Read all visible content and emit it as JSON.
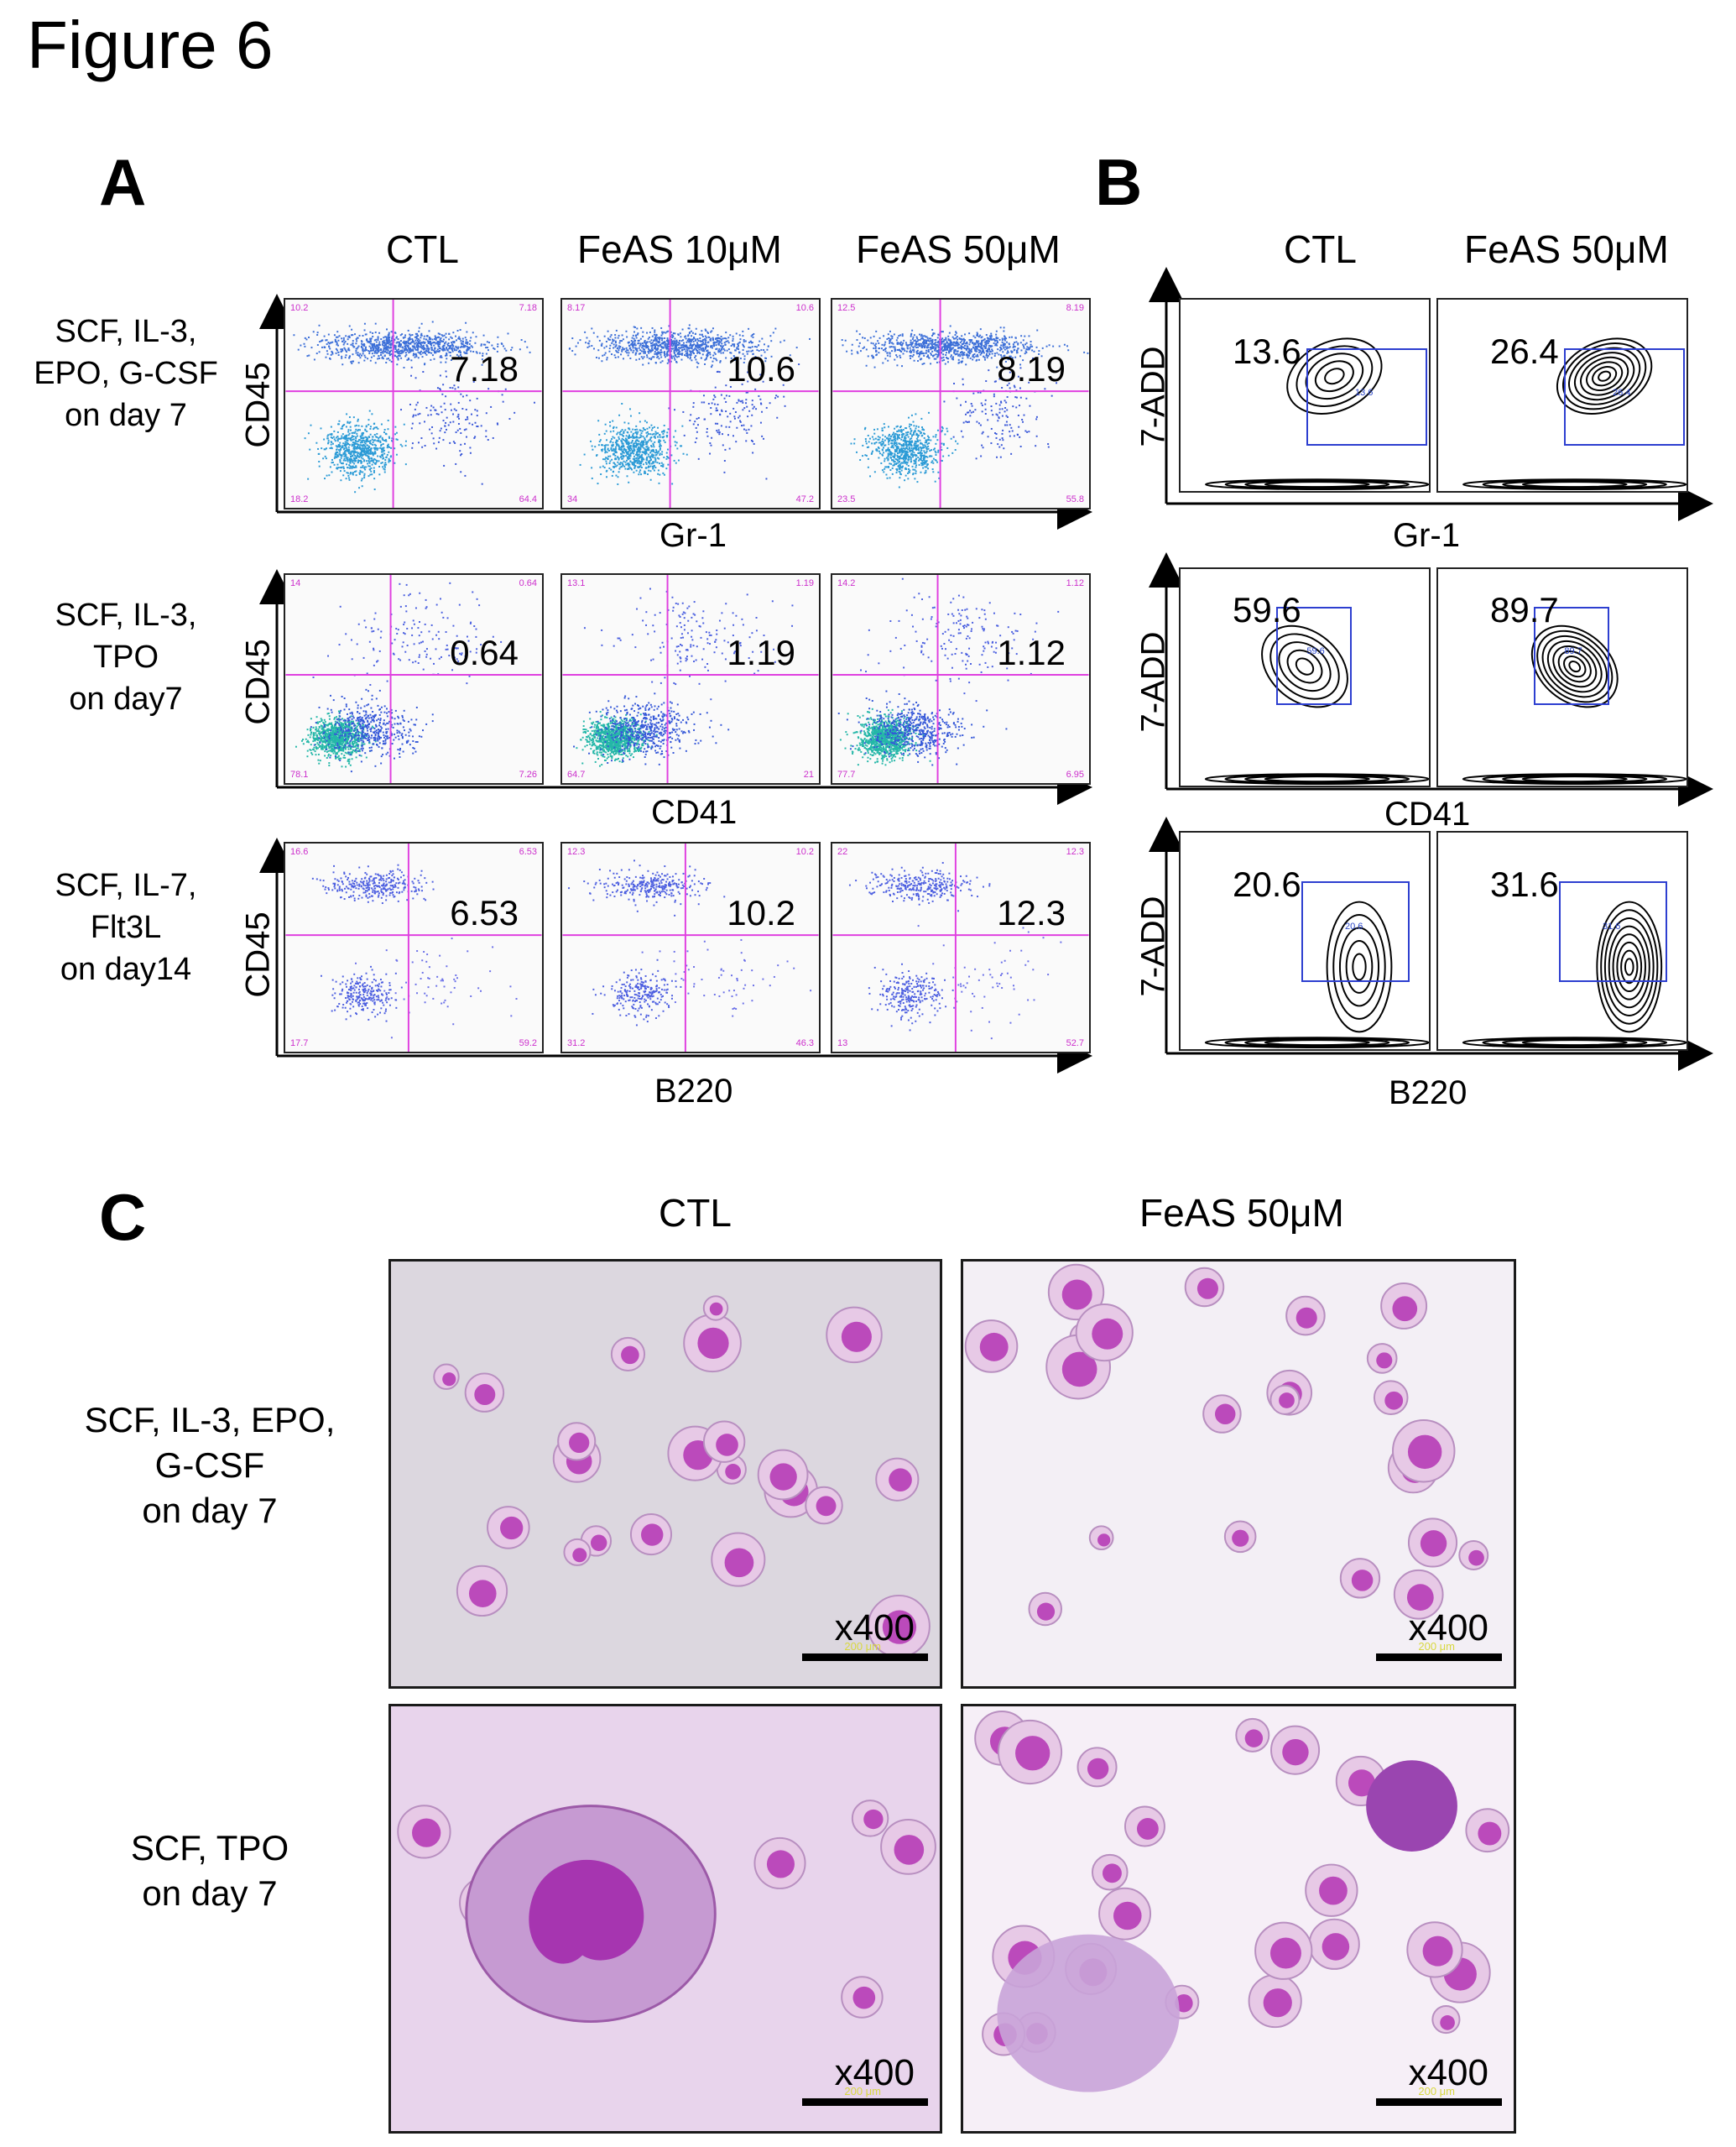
{
  "figure_title": "Figure 6",
  "panels": {
    "A": {
      "letter": "A",
      "columns": [
        "CTL",
        "FeAS 10μM",
        "FeAS 50μM"
      ],
      "y_axis_label": "CD45",
      "rows": [
        {
          "label_lines": [
            "SCF, IL-3,",
            "EPO, G-CSF",
            "on day 7"
          ],
          "x_axis_label": "Gr-1",
          "plots": [
            {
              "main": "7.18",
              "ul": "10.2",
              "ur": "7.18",
              "ll": "18.2",
              "lr": "64.4"
            },
            {
              "main": "10.6",
              "ul": "8.17",
              "ur": "10.6",
              "ll": "34",
              "lr": "47.2"
            },
            {
              "main": "8.19",
              "ul": "12.5",
              "ur": "8.19",
              "ll": "23.5",
              "lr": "55.8"
            }
          ]
        },
        {
          "label_lines": [
            "SCF, IL-3,",
            "TPO",
            "on day7"
          ],
          "x_axis_label": "CD41",
          "plots": [
            {
              "main": "0.64",
              "ul": "14",
              "ur": "0.64",
              "ll": "78.1",
              "lr": "7.26"
            },
            {
              "main": "1.19",
              "ul": "13.1",
              "ur": "1.19",
              "ll": "64.7",
              "lr": "21"
            },
            {
              "main": "1.12",
              "ul": "14.2",
              "ur": "1.12",
              "ll": "77.7",
              "lr": "6.95"
            }
          ]
        },
        {
          "label_lines": [
            "SCF, IL-7,",
            "Flt3L",
            "on day14"
          ],
          "x_axis_label": "B220",
          "plots": [
            {
              "main": "6.53",
              "ul": "16.6",
              "ur": "6.53",
              "ll": "17.7",
              "lr": "59.2"
            },
            {
              "main": "10.2",
              "ul": "12.3",
              "ur": "10.2",
              "ll": "31.2",
              "lr": "46.3"
            },
            {
              "main": "12.3",
              "ul": "22",
              "ur": "12.3",
              "ll": "13",
              "lr": "52.7"
            }
          ]
        }
      ]
    },
    "B": {
      "letter": "B",
      "columns": [
        "CTL",
        "FeAS 50μM"
      ],
      "y_axis_label": "7-ADD",
      "rows": [
        {
          "x_axis_label": "Gr-1",
          "values": [
            "13.6",
            "26.4"
          ]
        },
        {
          "x_axis_label": "CD41",
          "values": [
            "59.6",
            "89.7"
          ]
        },
        {
          "x_axis_label": "B220",
          "values": [
            "20.6",
            "31.6"
          ]
        }
      ]
    },
    "C": {
      "letter": "C",
      "columns": [
        "CTL",
        "FeAS 50μM"
      ],
      "rows": [
        {
          "label_lines": [
            "SCF, IL-3, EPO,",
            "G-CSF",
            "on day 7"
          ]
        },
        {
          "label_lines": [
            "SCF, TPO",
            "on day 7"
          ]
        }
      ],
      "magnification": "x400",
      "scale_text": "200 μm"
    }
  },
  "colors": {
    "quadrant": "#e040e0",
    "gate": "#2d3fd0",
    "stain_light": "#e7c9e6",
    "stain_dark": "#b02ab0"
  }
}
